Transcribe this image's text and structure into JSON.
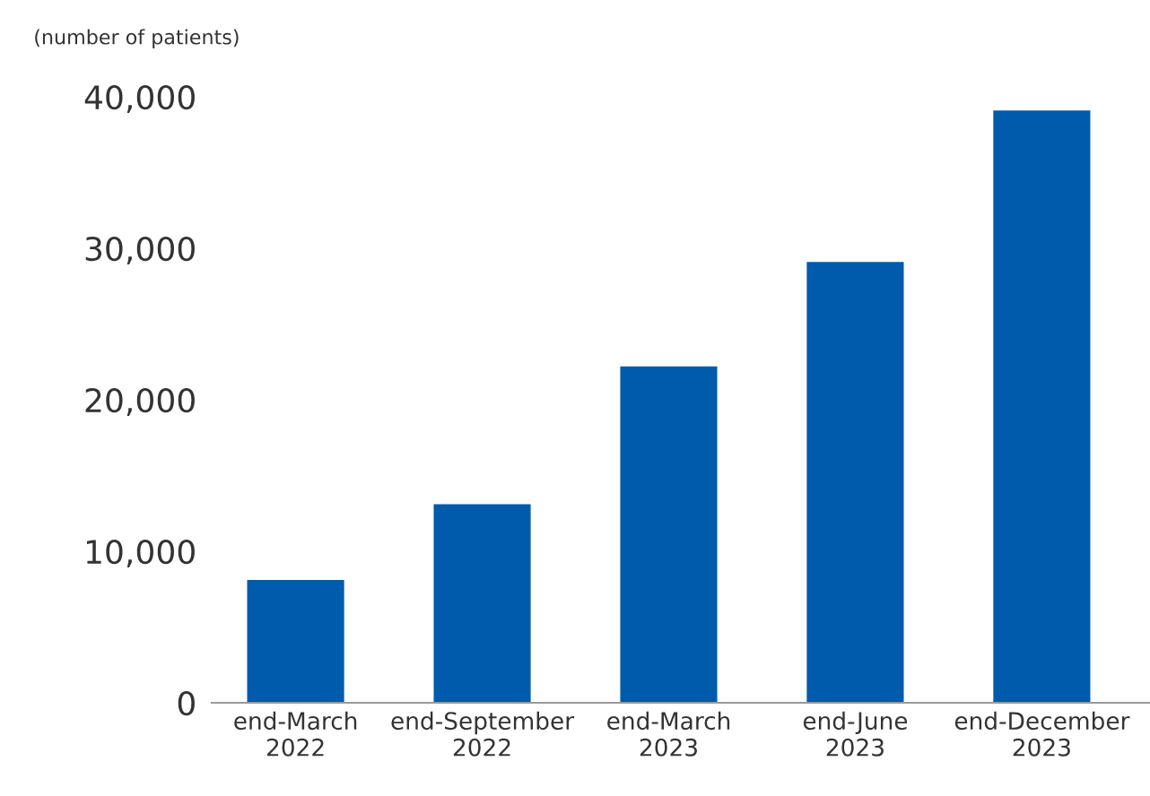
{
  "chart_data": {
    "type": "bar",
    "ylabel": "(number of patients)",
    "categories": [
      "end-March\n2022",
      "end-September\n2022",
      "end-March\n2023",
      "end-June\n2023",
      "end-December\n2023"
    ],
    "values": [
      8100,
      13100,
      22200,
      29100,
      39100
    ],
    "color": "#005bac",
    "ylim": [
      0,
      40000
    ],
    "yticks": [
      {
        "value": 0,
        "label": "0"
      },
      {
        "value": 10000,
        "label": "10,000"
      },
      {
        "value": 20000,
        "label": "20,000"
      },
      {
        "value": 30000,
        "label": "30,000"
      },
      {
        "value": 40000,
        "label": "40,000"
      }
    ]
  }
}
